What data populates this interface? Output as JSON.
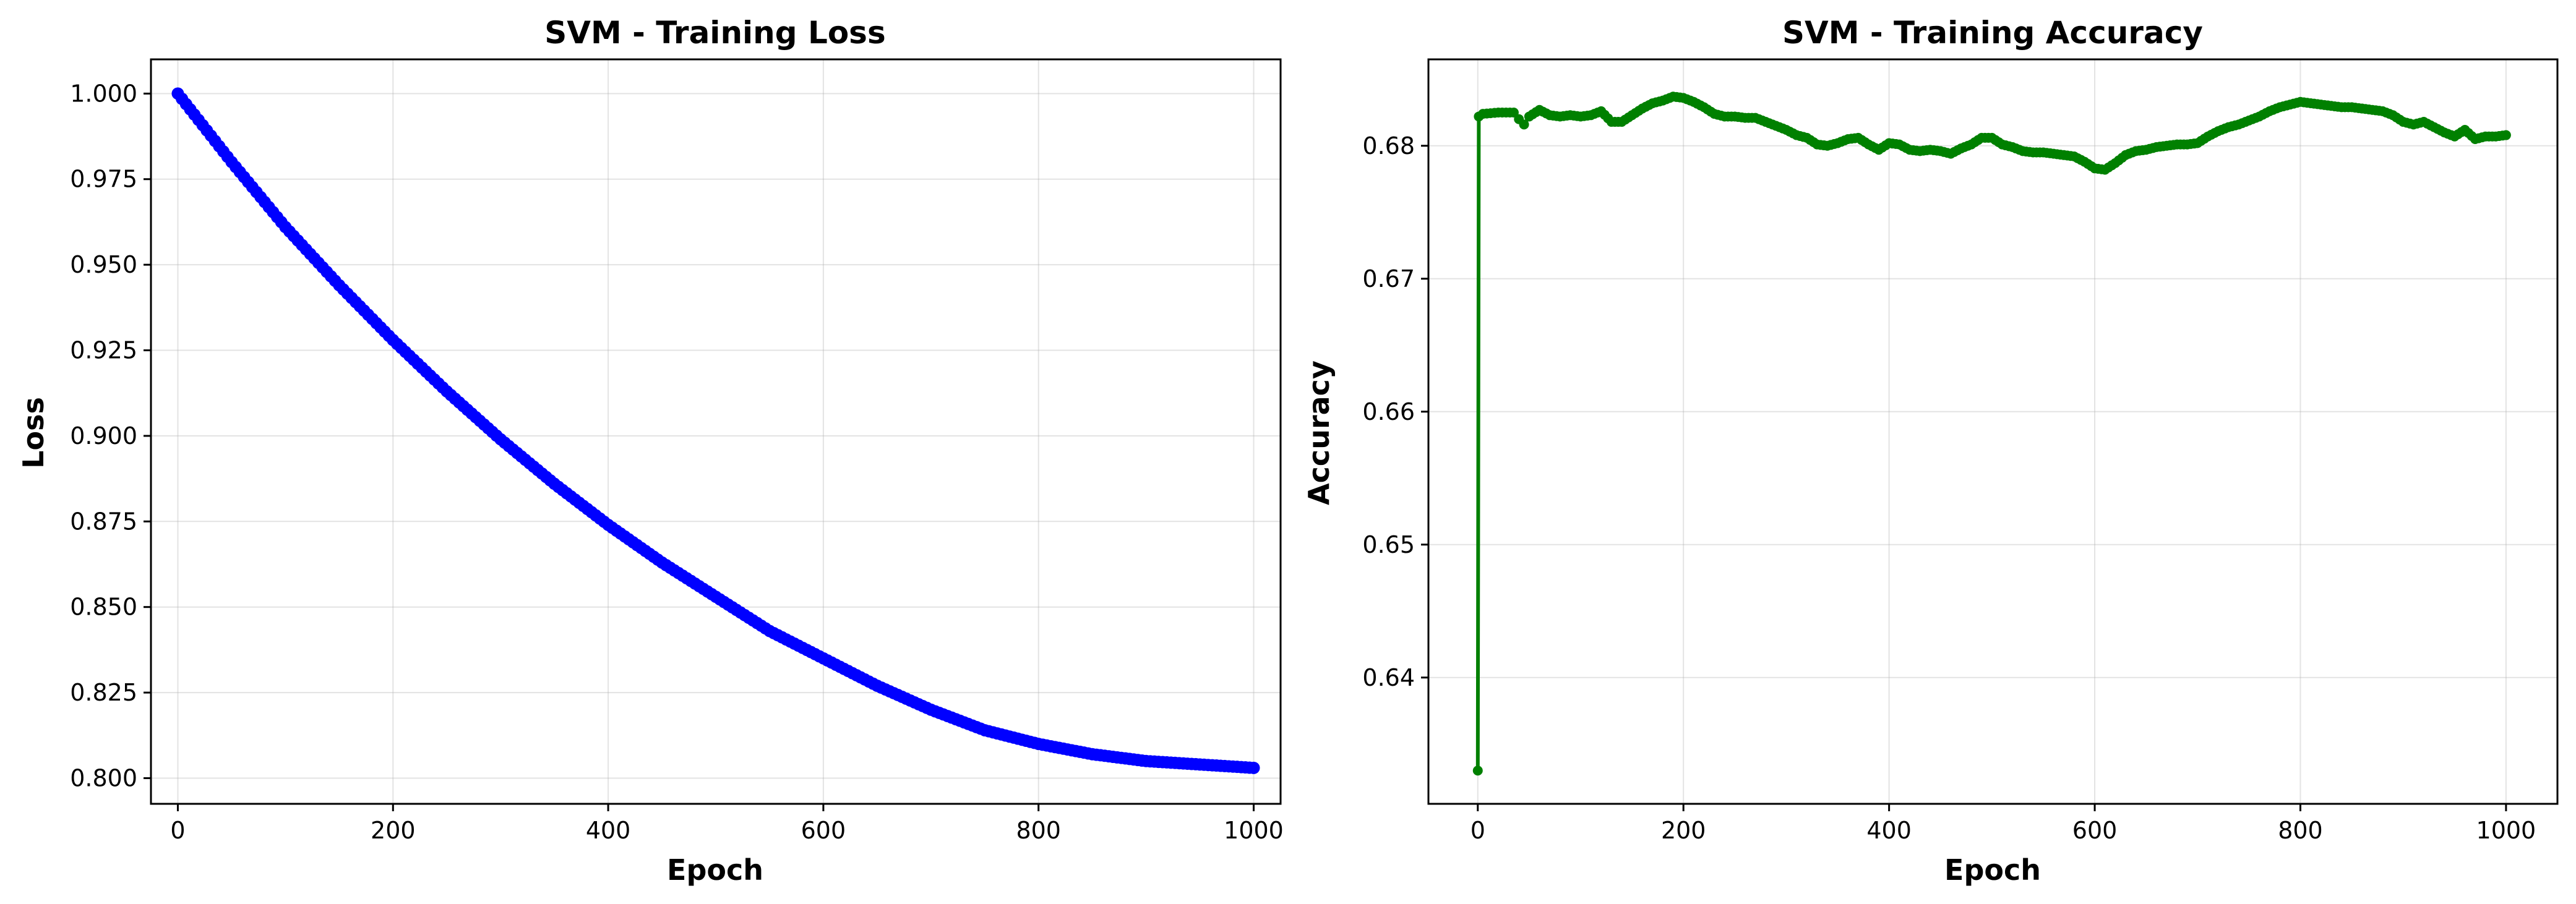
{
  "chart_data": [
    {
      "type": "line",
      "title": "SVM - Training Loss",
      "xlabel": "Epoch",
      "ylabel": "Loss",
      "xlim": [
        -25,
        1025
      ],
      "ylim": [
        0.7925,
        1.01
      ],
      "xticks": [
        0,
        200,
        400,
        600,
        800,
        1000
      ],
      "yticks": [
        0.8,
        0.825,
        0.85,
        0.875,
        0.9,
        0.925,
        0.95,
        0.975,
        1.0
      ],
      "ytick_labels": [
        "0.800",
        "0.825",
        "0.850",
        "0.875",
        "0.900",
        "0.925",
        "0.950",
        "0.975",
        "1.000"
      ],
      "grid": true,
      "color": "#0000ff",
      "marker": "circle",
      "series": [
        {
          "x": [
            0,
            50,
            100,
            150,
            200,
            250,
            300,
            350,
            400,
            450,
            500,
            550,
            600,
            650,
            700,
            750,
            800,
            850,
            900,
            950,
            1000
          ],
          "values": [
            1.0,
            0.98,
            0.961,
            0.944,
            0.928,
            0.913,
            0.899,
            0.886,
            0.874,
            0.863,
            0.853,
            0.843,
            0.835,
            0.827,
            0.82,
            0.814,
            0.81,
            0.807,
            0.805,
            0.804,
            0.803
          ]
        }
      ]
    },
    {
      "type": "line",
      "title": "SVM - Training Accuracy",
      "xlabel": "Epoch",
      "ylabel": "Accuracy",
      "xlim": [
        -48,
        1050
      ],
      "ylim": [
        0.6305,
        0.6865
      ],
      "xticks": [
        0,
        200,
        400,
        600,
        800,
        1000
      ],
      "yticks": [
        0.64,
        0.65,
        0.66,
        0.67,
        0.68
      ],
      "ytick_labels": [
        "0.64",
        "0.65",
        "0.66",
        "0.67",
        "0.68"
      ],
      "grid": true,
      "color": "#008000",
      "marker": "circle",
      "series": [
        {
          "x": [
            0,
            1,
            5,
            20,
            35,
            40,
            45,
            50,
            60,
            70,
            80,
            90,
            100,
            110,
            120,
            130,
            140,
            150,
            160,
            170,
            180,
            190,
            200,
            210,
            220,
            230,
            240,
            250,
            260,
            270,
            280,
            290,
            300,
            310,
            320,
            330,
            340,
            350,
            360,
            370,
            380,
            390,
            400,
            410,
            420,
            430,
            440,
            450,
            460,
            470,
            480,
            490,
            500,
            510,
            520,
            530,
            540,
            550,
            560,
            570,
            580,
            590,
            600,
            610,
            620,
            630,
            640,
            650,
            660,
            670,
            680,
            690,
            700,
            710,
            720,
            730,
            740,
            750,
            760,
            770,
            780,
            790,
            800,
            810,
            820,
            830,
            840,
            850,
            860,
            870,
            880,
            890,
            900,
            910,
            920,
            930,
            940,
            950,
            960,
            970,
            980,
            990,
            1000
          ],
          "values": [
            0.633,
            0.6822,
            0.6824,
            0.6825,
            0.6825,
            0.682,
            0.6816,
            0.6822,
            0.6827,
            0.6823,
            0.6822,
            0.6823,
            0.6822,
            0.6823,
            0.6826,
            0.6818,
            0.6818,
            0.6823,
            0.6828,
            0.6832,
            0.6834,
            0.6837,
            0.6836,
            0.6833,
            0.6829,
            0.6824,
            0.6822,
            0.6822,
            0.6821,
            0.6821,
            0.6818,
            0.6815,
            0.6812,
            0.6808,
            0.6806,
            0.6801,
            0.68,
            0.6802,
            0.6805,
            0.6806,
            0.6801,
            0.6797,
            0.6802,
            0.6801,
            0.6797,
            0.6796,
            0.6797,
            0.6796,
            0.6794,
            0.6798,
            0.6801,
            0.6806,
            0.6806,
            0.6801,
            0.6799,
            0.6796,
            0.6795,
            0.6795,
            0.6794,
            0.6793,
            0.6792,
            0.6788,
            0.6783,
            0.6782,
            0.6787,
            0.6793,
            0.6796,
            0.6797,
            0.6799,
            0.68,
            0.6801,
            0.6801,
            0.6802,
            0.6807,
            0.6811,
            0.6814,
            0.6816,
            0.6819,
            0.6822,
            0.6826,
            0.6829,
            0.6831,
            0.6833,
            0.6832,
            0.6831,
            0.683,
            0.6829,
            0.6829,
            0.6828,
            0.6827,
            0.6826,
            0.6823,
            0.6818,
            0.6816,
            0.6818,
            0.6814,
            0.681,
            0.6807,
            0.6812,
            0.6805,
            0.6807,
            0.6807,
            0.6808
          ]
        }
      ]
    }
  ]
}
